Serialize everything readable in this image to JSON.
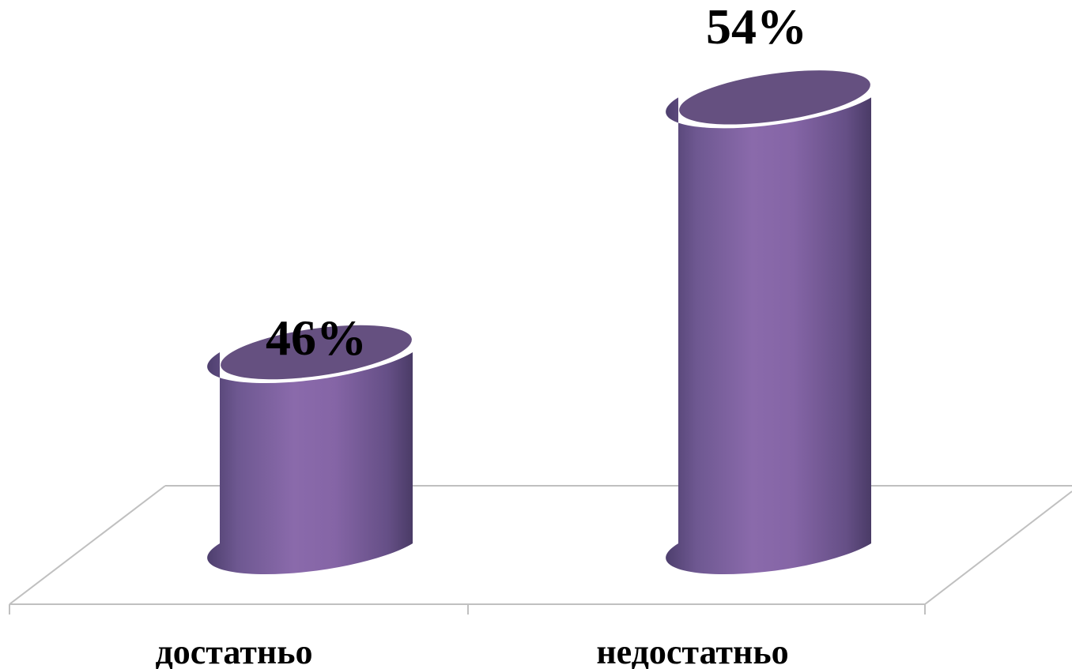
{
  "chart_data": {
    "type": "bar",
    "style": "3d-cylinder",
    "categories": [
      "достатньо",
      "недостатньо"
    ],
    "values": [
      46,
      54
    ],
    "data_labels": [
      "46%",
      "54%"
    ],
    "unit": "%",
    "ylim": [
      40,
      55
    ],
    "grid": false,
    "legend": "none",
    "colors": {
      "bar_light": "#8a6aab",
      "bar_dark": "#4e3f6e",
      "bar_top": "#655080",
      "floor_line": "#c0c0c0"
    }
  }
}
